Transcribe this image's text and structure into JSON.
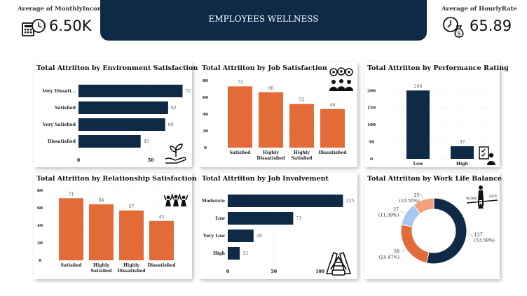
{
  "kpi_left": {
    "label": "Average of MonthlyIncome",
    "value": "6.50K",
    "icon": "calculator-clock-icon"
  },
  "kpi_right": {
    "label": "Average of HourlyRate",
    "value": "65.89",
    "icon": "clock-money-bag-icon"
  },
  "banner": {
    "title": "EMPLOYEES WELLNESS"
  },
  "colors": {
    "navy": "#0e2a47",
    "orange": "#e36b38",
    "light_blue": "#a6c8ee",
    "peach": "#f4a07a"
  },
  "chart_data": [
    {
      "id": "env",
      "type": "bar",
      "orientation": "horizontal",
      "title": "Total Attriiton by Environment Satisfaction",
      "categories": [
        "Very Dissati...",
        "Satisfied",
        "Very Satisfied",
        "Dissatisfied"
      ],
      "values": [
        72,
        62,
        60,
        43
      ],
      "xticks": [
        "0",
        "50"
      ],
      "xlim": [
        0,
        80
      ],
      "color": "#0e2a47",
      "icon": "plant-in-hand-icon"
    },
    {
      "id": "job",
      "type": "bar",
      "orientation": "vertical",
      "title": "Total Attriiton by Job Satisfaction",
      "categories": [
        "Satisfied",
        "Highly Dissatisfied",
        "Highly Satisfied",
        "Dissatisfied"
      ],
      "values": [
        73,
        66,
        52,
        46
      ],
      "yticks": [
        "0",
        "20",
        "40",
        "60",
        "80"
      ],
      "ylim": [
        0,
        80
      ],
      "color": "#e36b38",
      "icon": "team-gears-icon"
    },
    {
      "id": "perf",
      "type": "bar",
      "orientation": "vertical",
      "title": "Total Attriiton by Performance Rating",
      "categories": [
        "Low",
        "High"
      ],
      "values": [
        200,
        37
      ],
      "yticks": [
        "0",
        "50",
        "100",
        "150",
        "200"
      ],
      "ylim": [
        0,
        215
      ],
      "color": "#0e2a47",
      "icon": "performance-review-icon"
    },
    {
      "id": "rel",
      "type": "bar",
      "orientation": "vertical",
      "title": "Total Attriiton by Relationship Satisfaction",
      "categories": [
        "Satisfied",
        "Highly Satisfied",
        "Highly Dissatisfied",
        "Dissatisfied"
      ],
      "values": [
        71,
        64,
        57,
        45
      ],
      "yticks": [
        "0",
        "20",
        "40",
        "60",
        "80"
      ],
      "ylim": [
        0,
        80
      ],
      "color": "#e36b38",
      "icon": "people-celebrating-icon"
    },
    {
      "id": "inv",
      "type": "bar",
      "orientation": "horizontal",
      "title": "Total Attriiton by Job Involvement",
      "categories": [
        "Moderate",
        "Low",
        "Very Low",
        "High"
      ],
      "values": [
        125,
        71,
        28,
        13
      ],
      "xticks": [
        "0",
        "50",
        "100"
      ],
      "xlim": [
        0,
        130
      ],
      "color": "#0e2a47",
      "icon": "hands-stacked-icon"
    },
    {
      "id": "wlb",
      "type": "pie",
      "title": "Total Attriiton by Work Life Balance",
      "slices": [
        {
          "value": 127,
          "label": "127",
          "pct": "(53.59%)",
          "color": "#0e2a47"
        },
        {
          "value": 58,
          "label": "58",
          "pct": "(24.47%)",
          "color": "#e36b38"
        },
        {
          "value": 27,
          "label": "27",
          "pct": "(11.39%)",
          "color": "#a6c8ee"
        },
        {
          "value": 25,
          "label": "25",
          "pct": "(10.55%)",
          "color": "#f4a07a"
        }
      ],
      "icon_labels": [
        "WORK",
        "LIFE"
      ],
      "icon": "work-life-scale-icon"
    }
  ]
}
